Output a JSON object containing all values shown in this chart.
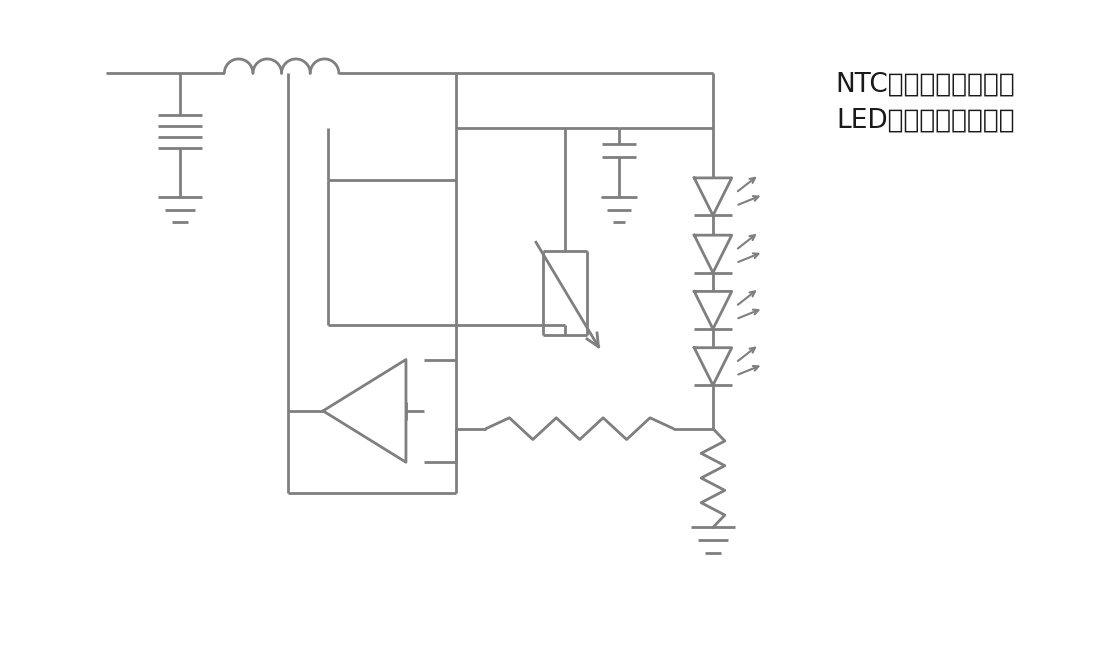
{
  "title": "NTCサーミスタによる\nLED温度監視の回路例",
  "color": "#7f7f7f",
  "lw": 2.0,
  "bg_color": "#ffffff"
}
